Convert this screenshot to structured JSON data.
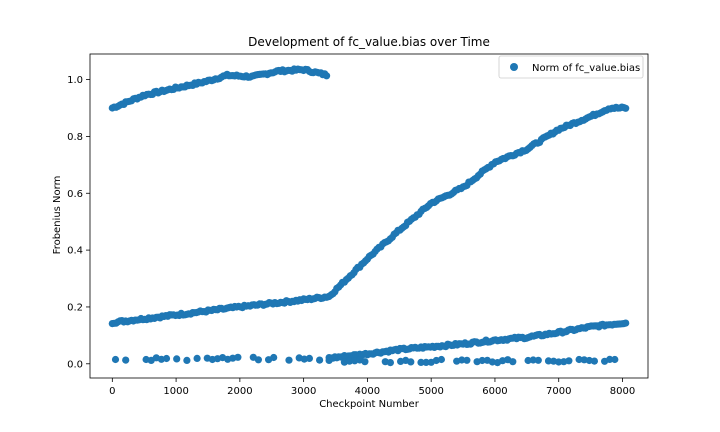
{
  "chart_data": {
    "type": "scatter",
    "title": "Development of fc_value.bias over Time",
    "xlabel": "Checkpoint Number",
    "ylabel": "Frobenius Norm",
    "xlim": [
      -350,
      8400
    ],
    "ylim": [
      -0.05,
      1.09
    ],
    "xticks": [
      0,
      1000,
      2000,
      3000,
      4000,
      5000,
      6000,
      7000,
      8000
    ],
    "yticks": [
      0.0,
      0.2,
      0.4,
      0.6,
      0.8,
      1.0
    ],
    "grid": false,
    "legend_position": "top-right",
    "color": "#1f77b4",
    "series": [
      {
        "name": "Norm of fc_value.bias",
        "segments": [
          {
            "x0": 0,
            "x1": 3380,
            "points": [
              [
                0,
                0.9
              ],
              [
                500,
                0.945
              ],
              [
                1000,
                0.97
              ],
              [
                1500,
                0.995
              ],
              [
                1800,
                1.015
              ],
              [
                2200,
                1.01
              ],
              [
                2600,
                1.03
              ],
              [
                3000,
                1.035
              ],
              [
                3380,
                1.015
              ]
            ]
          },
          {
            "x0": 0,
            "x1": 3400,
            "points": [
              [
                0,
                0.145
              ],
              [
                1000,
                0.172
              ],
              [
                2000,
                0.2
              ],
              [
                3000,
                0.225
              ],
              [
                3400,
                0.237
              ]
            ]
          },
          {
            "x0": 3400,
            "x1": 8050,
            "points": [
              [
                3400,
                0.237
              ],
              [
                4000,
                0.37
              ],
              [
                4500,
                0.47
              ],
              [
                5000,
                0.565
              ],
              [
                5500,
                0.62
              ],
              [
                6000,
                0.71
              ],
              [
                6500,
                0.755
              ],
              [
                7000,
                0.825
              ],
              [
                7500,
                0.87
              ],
              [
                7800,
                0.9
              ],
              [
                8050,
                0.9
              ]
            ]
          },
          {
            "x0": 3400,
            "x1": 8050,
            "points": [
              [
                3400,
                0.02
              ],
              [
                4000,
                0.035
              ],
              [
                4500,
                0.05
              ],
              [
                5000,
                0.06
              ],
              [
                5500,
                0.07
              ],
              [
                6000,
                0.083
              ],
              [
                6500,
                0.093
              ],
              [
                7000,
                0.11
              ],
              [
                7500,
                0.13
              ],
              [
                8050,
                0.145
              ]
            ]
          },
          {
            "x0": 50,
            "x1": 3350,
            "points": [
              [
                50,
                0.017
              ],
              [
                3350,
                0.017
              ]
            ]
          },
          {
            "x0": 3400,
            "x1": 8000,
            "points": [
              [
                3400,
                0.01
              ],
              [
                8000,
                0.01
              ]
            ]
          }
        ]
      }
    ]
  }
}
